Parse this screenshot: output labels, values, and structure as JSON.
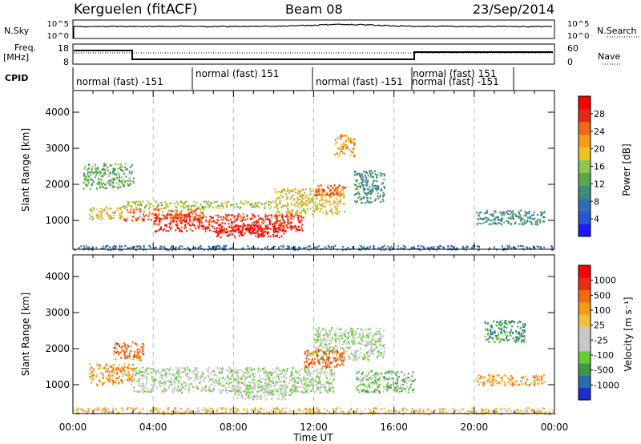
{
  "header": {
    "station": "Kerguelen (fitACF)",
    "beam": "Beam 08",
    "date": "23/Sep/2014"
  },
  "panels": {
    "nsky": {
      "left_label": "N.Sky",
      "left_ticks": [
        "10^5",
        "10^0"
      ],
      "right_label": "N.Search",
      "right_ticks": [
        "10^5",
        "10^0"
      ]
    },
    "freq": {
      "left_label_1": "Freq.",
      "left_label_2": "[MHz]",
      "left_ticks": [
        "18",
        "8"
      ],
      "right_label": "Nave",
      "right_ticks": [
        "60",
        "0"
      ]
    },
    "cpid": {
      "label": "CPID",
      "segments": [
        "normal (fast) -151",
        "normal (fast) 151",
        "normal (fast) -151",
        "normal (fast) 151",
        "normal (fast) -151"
      ]
    }
  },
  "chart_data": [
    {
      "type": "heatmap",
      "name": "power",
      "ylabel": "Slant Range [km]",
      "x_ticks": [
        "00:00",
        "04:00",
        "08:00",
        "12:00",
        "16:00",
        "20:00",
        "00:00"
      ],
      "y_ticks": [
        1000,
        2000,
        3000,
        4000
      ],
      "ylim": [
        200,
        4600
      ],
      "xlim_hours": [
        0,
        24
      ],
      "colorbar": {
        "label": "Power [dB]",
        "ticks": [
          "4",
          "8",
          "12",
          "16",
          "20",
          "24",
          "28"
        ],
        "colors": [
          "#1a1aff",
          "#2a55d8",
          "#2f6fb8",
          "#3c8c78",
          "#5aa84a",
          "#8fc850",
          "#f0c020",
          "#f59a1a",
          "#f06818",
          "#e82818",
          "#ff0000"
        ]
      },
      "bands": [
        {
          "t": [
            0.8,
            2.5
          ],
          "r": [
            1050,
            1400
          ],
          "level": 6
        },
        {
          "t": [
            2.5,
            6.5
          ],
          "r": [
            1000,
            1350
          ],
          "level": 8
        },
        {
          "t": [
            4.0,
            11.5
          ],
          "r": [
            700,
            1200
          ],
          "level": 9
        },
        {
          "t": [
            7.0,
            10.5
          ],
          "r": [
            550,
            900
          ],
          "level": 10
        },
        {
          "t": [
            2.5,
            10.0
          ],
          "r": [
            1350,
            1550
          ],
          "level": 5
        },
        {
          "t": [
            10.0,
            13.5
          ],
          "r": [
            1200,
            1900
          ],
          "level": 6
        },
        {
          "t": [
            12.0,
            13.6
          ],
          "r": [
            1700,
            2000
          ],
          "level": 8
        },
        {
          "t": [
            13.0,
            14.0
          ],
          "r": [
            2800,
            3400
          ],
          "level": 7
        },
        {
          "t": [
            14.0,
            15.5
          ],
          "r": [
            1500,
            2400
          ],
          "level": 3
        },
        {
          "t": [
            20.0,
            23.5
          ],
          "r": [
            900,
            1300
          ],
          "level": 3
        },
        {
          "t": [
            0.5,
            3.0
          ],
          "r": [
            1900,
            2600
          ],
          "level": 4
        },
        {
          "t": [
            0.0,
            24.0
          ],
          "r": [
            200,
            320
          ],
          "level": 2
        }
      ]
    },
    {
      "type": "heatmap",
      "name": "velocity",
      "ylabel": "Slant Range [km]",
      "xlabel": "Time UT",
      "x_ticks": [
        "00:00",
        "04:00",
        "08:00",
        "12:00",
        "16:00",
        "20:00",
        "00:00"
      ],
      "y_ticks": [
        1000,
        2000,
        3000,
        4000
      ],
      "ylim": [
        200,
        4600
      ],
      "xlim_hours": [
        0,
        24
      ],
      "colorbar": {
        "label": "Velocity [m s⁻¹]",
        "ticks": [
          "1000",
          "500",
          "100",
          "25",
          "-25",
          "-100",
          "-500",
          "-1000"
        ],
        "colors": [
          "#1a30c8",
          "#2a6cb0",
          "#3b9a4a",
          "#66cc33",
          "#c8c8c8",
          "#c8c8c8",
          "#f2c040",
          "#f59a1a",
          "#f06a10",
          "#e83010",
          "#ff0000"
        ]
      },
      "bands": [
        {
          "t": [
            3.0,
            13.0
          ],
          "r": [
            800,
            1500
          ],
          "level": 4
        },
        {
          "t": [
            8.0,
            11.0
          ],
          "r": [
            600,
            1000
          ],
          "level": 4
        },
        {
          "t": [
            12.0,
            15.5
          ],
          "r": [
            1700,
            2600
          ],
          "level": 4
        },
        {
          "t": [
            11.5,
            13.5
          ],
          "r": [
            1500,
            2000
          ],
          "level": 8
        },
        {
          "t": [
            0.8,
            3.0
          ],
          "r": [
            1000,
            1600
          ],
          "level": 7
        },
        {
          "t": [
            14.0,
            17.0
          ],
          "r": [
            800,
            1400
          ],
          "level": 3
        },
        {
          "t": [
            20.0,
            23.5
          ],
          "r": [
            1000,
            1300
          ],
          "level": 7
        },
        {
          "t": [
            0.0,
            24.0
          ],
          "r": [
            200,
            380
          ],
          "level": 6
        },
        {
          "t": [
            20.5,
            22.5
          ],
          "r": [
            2200,
            2800
          ],
          "level": 2
        },
        {
          "t": [
            2.0,
            3.5
          ],
          "r": [
            1700,
            2200
          ],
          "level": 8
        }
      ]
    }
  ]
}
